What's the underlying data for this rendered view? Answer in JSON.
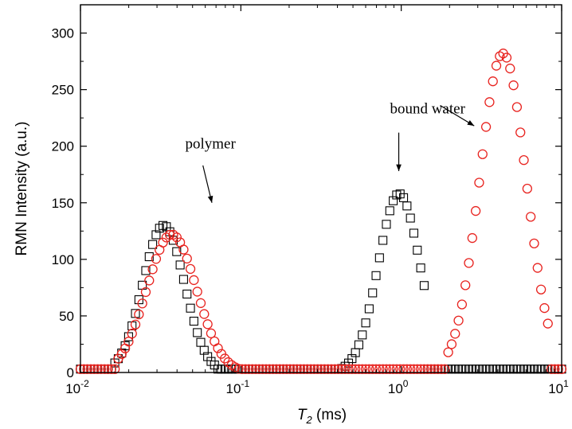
{
  "chart_data": {
    "type": "scatter",
    "xlabel": {
      "main": "T",
      "sub": "2",
      "unit": " (ms)"
    },
    "ylabel": "RMN Intensity (a.u.)",
    "xscale": "log",
    "xlim": [
      0.01,
      10
    ],
    "ylim": [
      0,
      325
    ],
    "x_ticks": [
      {
        "value": 0.01,
        "base": "10",
        "exp": "-2"
      },
      {
        "value": 0.1,
        "base": "10",
        "exp": "-1"
      },
      {
        "value": 1,
        "base": "10",
        "exp": "0"
      },
      {
        "value": 10,
        "base": "10",
        "exp": "1"
      }
    ],
    "y_ticks": [
      {
        "value": 0,
        "label": "0"
      },
      {
        "value": 50,
        "label": "50"
      },
      {
        "value": 100,
        "label": "100"
      },
      {
        "value": 150,
        "label": "150"
      },
      {
        "value": 200,
        "label": "200"
      },
      {
        "value": 250,
        "label": "250"
      },
      {
        "value": 300,
        "label": "300"
      }
    ],
    "grid": false,
    "series": [
      {
        "marker": "square",
        "color": "#000000",
        "peaks": [
          {
            "start": 0.016,
            "center": 0.033,
            "end": 0.07,
            "height": 130,
            "sigma_log": 0.13
          },
          {
            "start": 0.42,
            "center": 0.97,
            "end": 1.45,
            "height": 158,
            "sigma_log": 0.13
          }
        ]
      },
      {
        "marker": "circle",
        "color": "#e8231f",
        "peaks": [
          {
            "start": 0.017,
            "center": 0.037,
            "end": 0.1,
            "height": 122,
            "sigma_log": 0.155
          },
          {
            "start": 1.9,
            "center": 4.3,
            "end": 8.6,
            "height": 282,
            "sigma_log": 0.145
          }
        ]
      }
    ],
    "annotations": [
      {
        "text": "polymer",
        "text_at": [
          0.045,
          198
        ],
        "arrow_from": [
          0.058,
          183
        ],
        "arrow_to": [
          0.066,
          150
        ]
      },
      {
        "text": "bound water",
        "text_at": [
          0.85,
          229
        ],
        "arrow_from": [
          0.965,
          212
        ],
        "arrow_to": [
          0.965,
          178
        ]
      },
      {
        "text": "",
        "text_at": null,
        "arrow_from": [
          1.75,
          236
        ],
        "arrow_to": [
          2.85,
          218
        ]
      }
    ]
  }
}
